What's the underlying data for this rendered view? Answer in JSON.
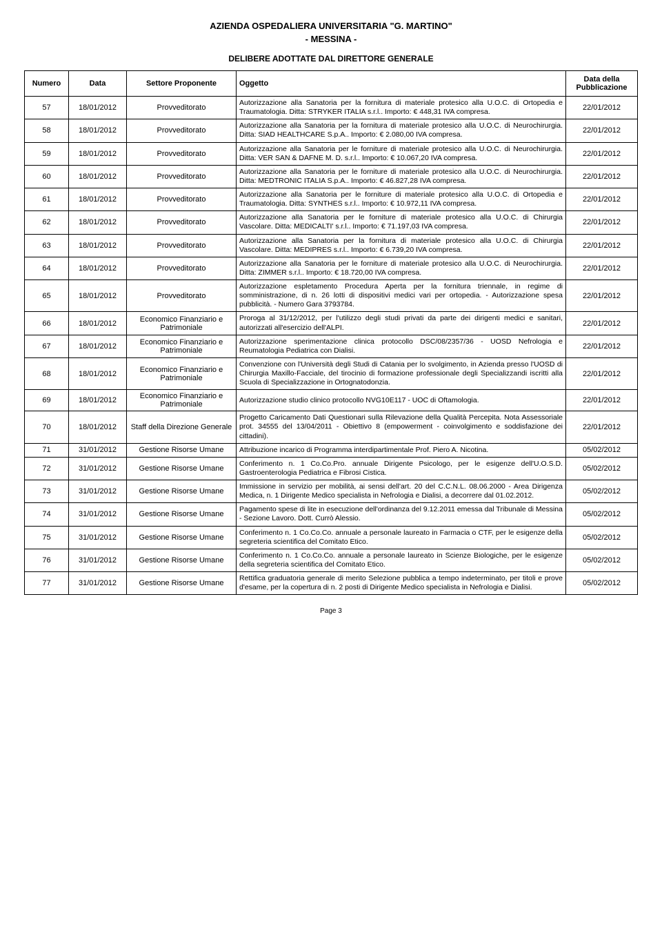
{
  "header": {
    "line1": "AZIENDA OSPEDALIERA UNIVERSITARIA \"G. MARTINO\"",
    "line2": "- MESSINA -",
    "section": "DELIBERE ADOTTATE DAL DIRETTORE GENERALE"
  },
  "columns": {
    "numero": "Numero",
    "data": "Data",
    "settore": "Settore Proponente",
    "oggetto": "Oggetto",
    "pubblicazione": "Data della Pubblicazione"
  },
  "rows": [
    {
      "num": "57",
      "data": "18/01/2012",
      "settore": "Provveditorato",
      "oggetto": "Autorizzazione alla Sanatoria per la fornitura di materiale protesico alla U.O.C. di Ortopedia e Traumatologia. Ditta: STRYKER ITALIA s.r.l.. Importo: € 448,31 IVA compresa.",
      "pub": "22/01/2012"
    },
    {
      "num": "58",
      "data": "18/01/2012",
      "settore": "Provveditorato",
      "oggetto": "Autorizzazione alla Sanatoria per la fornitura di materiale protesico alla U.O.C. di Neurochirurgia. Ditta: SIAD HEALTHCARE S.p.A.. Importo: € 2.080,00 IVA compresa.",
      "pub": "22/01/2012"
    },
    {
      "num": "59",
      "data": "18/01/2012",
      "settore": "Provveditorato",
      "oggetto": "Autorizzazione alla Sanatoria per le forniture di materiale protesico alla U.O.C. di Neurochirurgia. Ditta: VER SAN & DAFNE M. D. s.r.l.. Importo: € 10.067,20 IVA compresa.",
      "pub": "22/01/2012"
    },
    {
      "num": "60",
      "data": "18/01/2012",
      "settore": "Provveditorato",
      "oggetto": "Autorizzazione alla Sanatoria per le forniture di materiale protesico alla U.O.C. di Neurochirurgia. Ditta: MEDTRONIC ITALIA S.p.A.. Importo: € 46.827,28 IVA compresa.",
      "pub": "22/01/2012"
    },
    {
      "num": "61",
      "data": "18/01/2012",
      "settore": "Provveditorato",
      "oggetto": "Autorizzazione alla Sanatoria per le forniture di materiale protesico alla U.O.C. di Ortopedia e Traumatologia. Ditta: SYNTHES s.r.l.. Importo: € 10.972,11 IVA compresa.",
      "pub": "22/01/2012"
    },
    {
      "num": "62",
      "data": "18/01/2012",
      "settore": "Provveditorato",
      "oggetto": "Autorizzazione alla Sanatoria per le forniture di materiale protesico alla U.O.C. di Chirurgia Vascolare. Ditta: MEDICALTI' s.r.l.. Importo: € 71.197,03 IVA compresa.",
      "pub": "22/01/2012"
    },
    {
      "num": "63",
      "data": "18/01/2012",
      "settore": "Provveditorato",
      "oggetto": "Autorizzazione alla Sanatoria per la fornitura di materiale protesico alla U.O.C. di Chirurgia Vascolare. Ditta: MEDIPRES s.r.l.. Importo: € 6.739,20 IVA compresa.",
      "pub": "22/01/2012"
    },
    {
      "num": "64",
      "data": "18/01/2012",
      "settore": "Provveditorato",
      "oggetto": "Autorizzazione alla Sanatoria per le forniture di materiale protesico alla U.O.C. di Neurochirurgia. Ditta: ZIMMER s.r.l.. Importo: € 18.720,00 IVA compresa.",
      "pub": "22/01/2012"
    },
    {
      "num": "65",
      "data": "18/01/2012",
      "settore": "Provveditorato",
      "oggetto": "Autorizzazione espletamento Procedura Aperta per la fornitura triennale, in regime di somministrazione, di n. 26 lotti di dispositivi medici vari per ortopedia. - Autorizzazione spesa pubblicità. - Numero Gara 3793784.",
      "pub": "22/01/2012"
    },
    {
      "num": "66",
      "data": "18/01/2012",
      "settore": "Economico Finanziario e Patrimoniale",
      "oggetto": "Proroga al 31/12/2012, per l'utilizzo degli studi privati da parte dei dirigenti medici e sanitari, autorizzati all'esercizio dell'ALPI.",
      "pub": "22/01/2012"
    },
    {
      "num": "67",
      "data": "18/01/2012",
      "settore": "Economico Finanziario e Patrimoniale",
      "oggetto": "Autorizzazione sperimentazione clinica protocollo DSC/08/2357/36 - UOSD Nefrologia e Reumatologia Pediatrica con Dialisi.",
      "pub": "22/01/2012"
    },
    {
      "num": "68",
      "data": "18/01/2012",
      "settore": "Economico Finanziario e Patrimoniale",
      "oggetto": "Convenzione con l'Università degli Studi di Catania per lo svolgimento, in Azienda presso l'UOSD di Chirurgia Maxillo-Facciale, del tirocinio di formazione professionale degli Specializzandi iscritti alla Scuola di Specializzazione in Ortognatodonzia.",
      "pub": "22/01/2012"
    },
    {
      "num": "69",
      "data": "18/01/2012",
      "settore": "Economico Finanziario e Patrimoniale",
      "oggetto": "Autorizzazione studio clinico protocollo NVG10E117 - UOC di Oftamologia.",
      "pub": "22/01/2012"
    },
    {
      "num": "70",
      "data": "18/01/2012",
      "settore": "Staff della Direzione Generale",
      "oggetto": "Progetto Caricamento Dati Questionari sulla Rilevazione della Qualità Percepita. Nota Assessoriale prot. 34555 del 13/04/2011 - Obiettivo 8 (empowerment - coinvolgimento e soddisfazione dei cittadini).",
      "pub": "22/01/2012"
    },
    {
      "num": "71",
      "data": "31/01/2012",
      "settore": "Gestione Risorse Umane",
      "oggetto": "Attribuzione incarico di Programma interdipartimentale Prof. Piero A. Nicotina.",
      "pub": "05/02/2012"
    },
    {
      "num": "72",
      "data": "31/01/2012",
      "settore": "Gestione Risorse Umane",
      "oggetto": "Conferimento n. 1 Co.Co.Pro. annuale Dirigente Psicologo, per le esigenze dell'U.O.S.D. Gastroenterologia Pediatrica e Fibrosi Cistica.",
      "pub": "05/02/2012"
    },
    {
      "num": "73",
      "data": "31/01/2012",
      "settore": "Gestione Risorse Umane",
      "oggetto": "Immissione in servizio per mobilità, ai sensi dell'art. 20 del C.C.N.L. 08.06.2000 - Area Dirigenza Medica, n. 1 Dirigente Medico specialista in Nefrologia e Dialisi, a decorrere dal 01.02.2012.",
      "pub": "05/02/2012"
    },
    {
      "num": "74",
      "data": "31/01/2012",
      "settore": "Gestione Risorse Umane",
      "oggetto": "Pagamento spese di lite in esecuzione dell'ordinanza del 9.12.2011 emessa dal Tribunale di Messina - Sezione Lavoro. Dott. Currò Alessio.",
      "pub": "05/02/2012"
    },
    {
      "num": "75",
      "data": "31/01/2012",
      "settore": "Gestione Risorse Umane",
      "oggetto": "Conferimento n. 1 Co.Co.Co. annuale a personale laureato in Farmacia o CTF, per le esigenze della segreteria scientifica del Comitato Etico.",
      "pub": "05/02/2012"
    },
    {
      "num": "76",
      "data": "31/01/2012",
      "settore": "Gestione Risorse Umane",
      "oggetto": "Conferimento n. 1 Co.Co.Co. annuale a personale laureato in Scienze Biologiche, per le esigenze della segreteria scientifica del Comitato Etico.",
      "pub": "05/02/2012"
    },
    {
      "num": "77",
      "data": "31/01/2012",
      "settore": "Gestione Risorse Umane",
      "oggetto": "Rettifica graduatoria generale di merito Selezione pubblica a tempo indeterminato, per titoli e prove d'esame, per la copertura di n. 2 posti di Dirigente Medico specialista in Nefrologia e Dialisi.",
      "pub": "05/02/2012"
    }
  ],
  "footer": {
    "page": "Page 3"
  }
}
